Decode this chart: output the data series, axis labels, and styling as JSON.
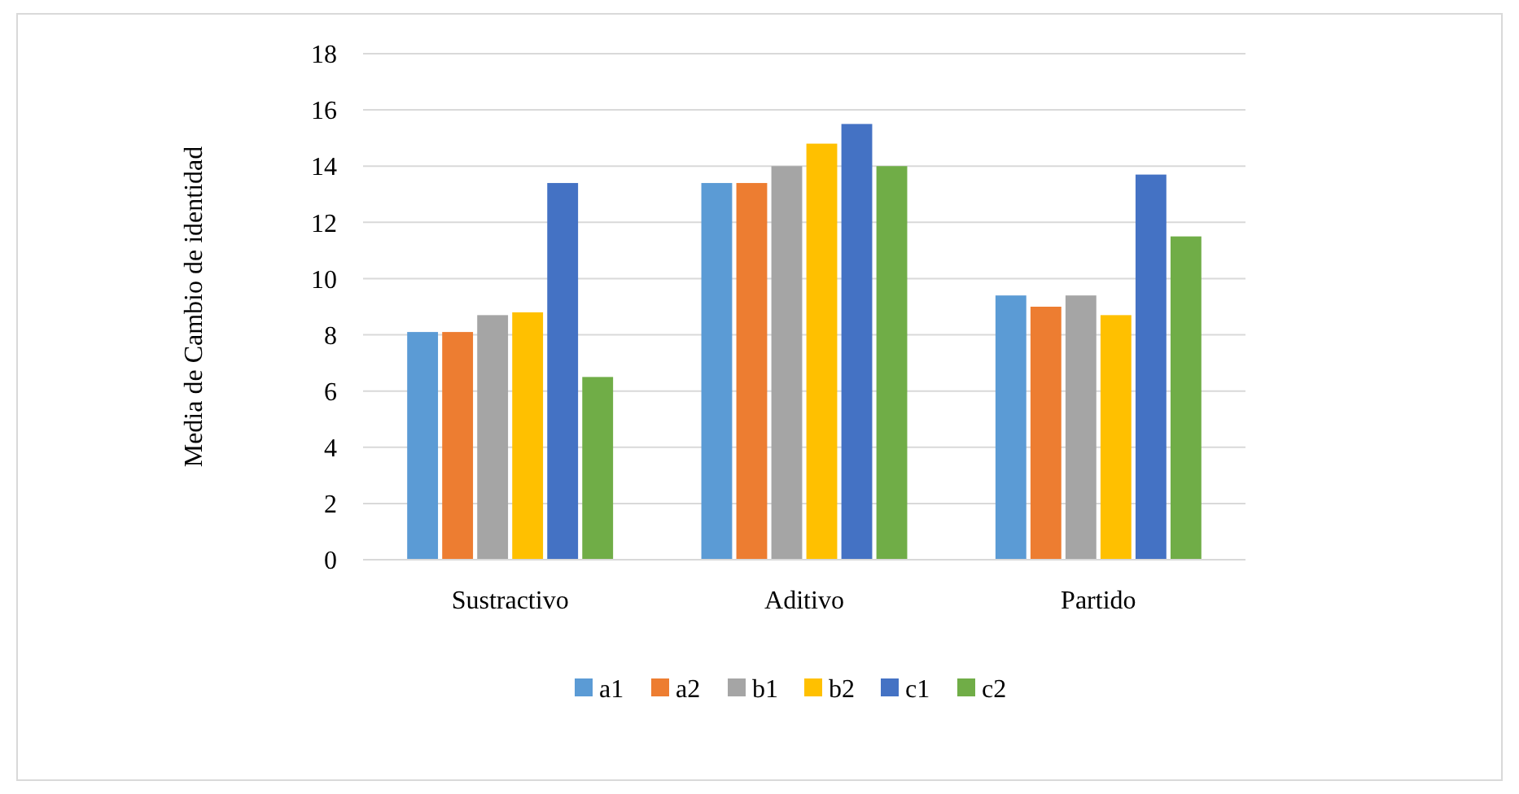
{
  "chart_data": {
    "type": "bar",
    "ylabel": "Media de Cambio de identidad",
    "categories": [
      "Sustractivo",
      "Aditivo",
      "Partido"
    ],
    "series": [
      {
        "name": "a1",
        "color": "#5b9bd5",
        "values": [
          8.1,
          13.4,
          9.4
        ]
      },
      {
        "name": "a2",
        "color": "#ed7d31",
        "values": [
          8.1,
          13.4,
          9.0
        ]
      },
      {
        "name": "b1",
        "color": "#a5a5a5",
        "values": [
          8.7,
          14.0,
          9.4
        ]
      },
      {
        "name": "b2",
        "color": "#ffc000",
        "values": [
          8.8,
          14.8,
          8.7
        ]
      },
      {
        "name": "c1",
        "color": "#4472c4",
        "values": [
          13.4,
          15.5,
          13.7
        ]
      },
      {
        "name": "c2",
        "color": "#70ad47",
        "values": [
          6.5,
          14.0,
          11.5
        ]
      }
    ],
    "ylim": [
      0,
      18
    ],
    "yticks": [
      0,
      2,
      4,
      6,
      8,
      10,
      12,
      14,
      16,
      18
    ],
    "grid": "y",
    "legend": "bottom"
  }
}
